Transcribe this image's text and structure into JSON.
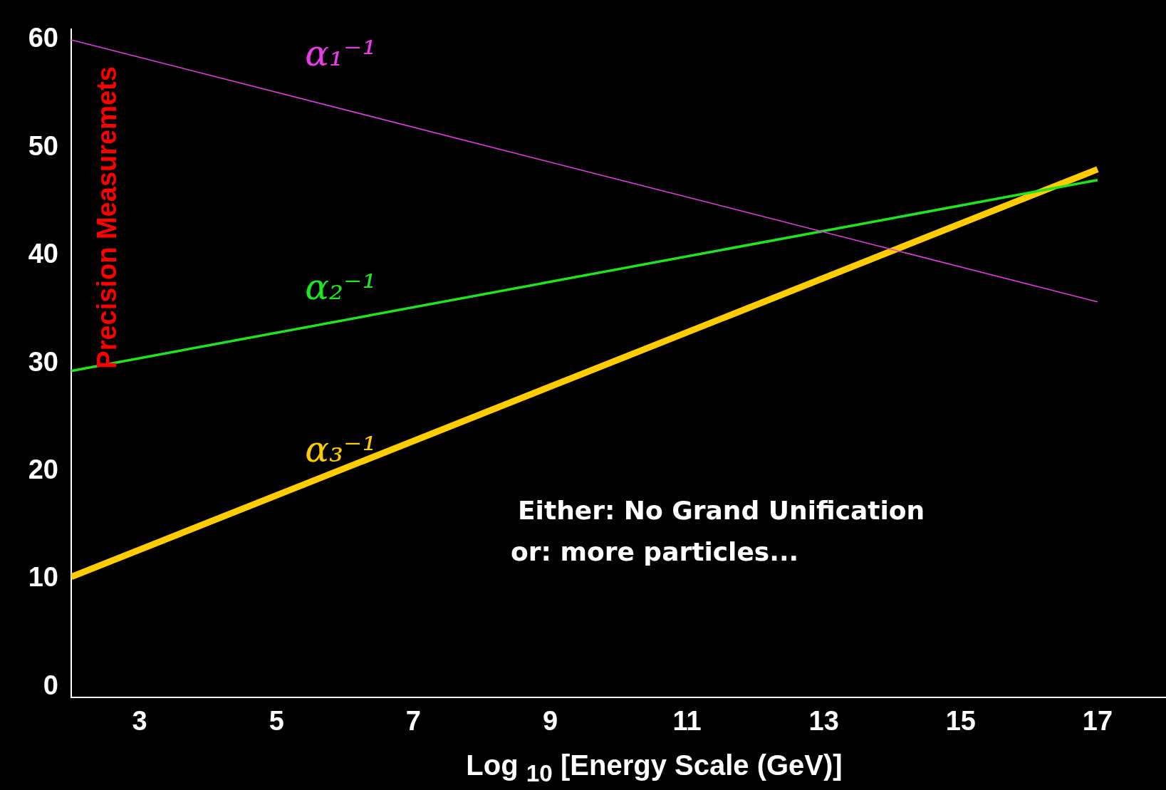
{
  "chart_data": {
    "type": "line",
    "xlabel": "Log $_{10}$ [Energy Scale (GeV)]",
    "x": [
      2,
      17
    ],
    "xlim": [
      2,
      18
    ],
    "xticks": [
      3,
      5,
      7,
      9,
      11,
      13,
      15,
      17
    ],
    "ylim": [
      -1,
      61
    ],
    "yticks": [
      0,
      10,
      20,
      30,
      40,
      50,
      60
    ],
    "grid": false,
    "legend": false,
    "marker": "none",
    "line_style": "solid",
    "series": [
      {
        "name": "α₁⁻¹",
        "color": "#e83ce8",
        "values": [
          60,
          35.7
        ]
      },
      {
        "name": "α₂⁻¹",
        "color": "#1ee61e",
        "values": [
          29.3,
          47
        ]
      },
      {
        "name": "α₃⁻¹",
        "color": "#ffcc00",
        "values": [
          10.2,
          48
        ]
      }
    ],
    "annotations": [
      "Precision Measuremets",
      "Either: No Grand Unification",
      "or: more particles..."
    ]
  }
}
